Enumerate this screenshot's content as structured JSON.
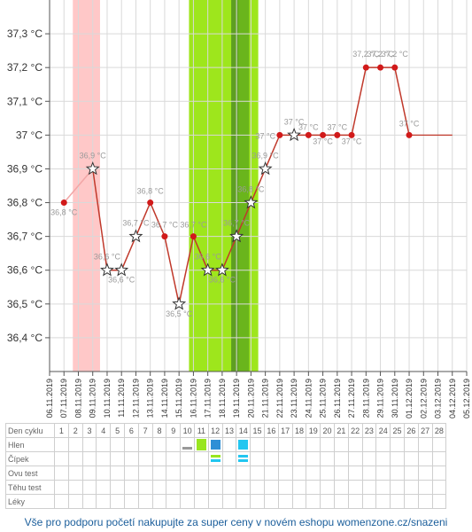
{
  "chart_data": {
    "type": "line",
    "ylabel": "",
    "xlabel": "",
    "y_ticks": [
      "36,4 °C",
      "36,5 °C",
      "36,6 °C",
      "36,7 °C",
      "36,8 °C",
      "36,9 °C",
      "37 °C",
      "37,1 °C",
      "37,2 °C",
      "37,3 °C"
    ],
    "y_tick_values": [
      36.4,
      36.5,
      36.6,
      36.7,
      36.8,
      36.9,
      37.0,
      37.1,
      37.2,
      37.3
    ],
    "ylim": [
      36.3,
      37.4
    ],
    "x_dates": [
      "06.11.2019",
      "07.11.2019",
      "08.11.2019",
      "09.11.2019",
      "10.11.2019",
      "11.11.2019",
      "12.11.2019",
      "13.11.2019",
      "14.11.2019",
      "15.11.2019",
      "16.11.2019",
      "17.11.2019",
      "18.11.2019",
      "19.11.2019",
      "20.11.2019",
      "21.11.2019",
      "22.11.2019",
      "23.11.2019",
      "24.11.2019",
      "25.11.2019",
      "26.11.2019",
      "27.11.2019",
      "28.11.2019",
      "29.11.2019",
      "30.11.2019",
      "01.12.2019",
      "02.12.2019",
      "03.12.2019",
      "04.12.2019",
      "05.12.2019"
    ],
    "series": [
      {
        "points": [
          {
            "x": "07.11.2019",
            "y": 36.8,
            "label": "36,8 °C",
            "marker": "dot"
          },
          {
            "x": "09.11.2019",
            "y": 36.9,
            "label": "36,9 °C",
            "marker": "star"
          },
          {
            "x": "10.11.2019",
            "y": 36.6,
            "label": "36,6 °C",
            "marker": "star"
          },
          {
            "x": "11.11.2019",
            "y": 36.6,
            "label": "36,6 °C",
            "marker": "star"
          },
          {
            "x": "12.11.2019",
            "y": 36.7,
            "label": "36,7 °C",
            "marker": "star"
          },
          {
            "x": "13.11.2019",
            "y": 36.8,
            "label": "36,8 °C",
            "marker": "dot"
          },
          {
            "x": "14.11.2019",
            "y": 36.7,
            "label": "36,7 °C",
            "marker": "dot"
          },
          {
            "x": "15.11.2019",
            "y": 36.5,
            "label": "36,5 °C",
            "marker": "star"
          },
          {
            "x": "16.11.2019",
            "y": 36.7,
            "label": "36,7 °C",
            "marker": "dot"
          },
          {
            "x": "17.11.2019",
            "y": 36.6,
            "label": "36,6 °C",
            "marker": "star"
          },
          {
            "x": "18.11.2019",
            "y": 36.6,
            "label": "36,6 °C",
            "marker": "star"
          },
          {
            "x": "19.11.2019",
            "y": 36.7,
            "label": "36,7 °C",
            "marker": "star"
          },
          {
            "x": "20.11.2019",
            "y": 36.8,
            "label": "36,8 °C",
            "marker": "star"
          },
          {
            "x": "21.11.2019",
            "y": 36.9,
            "label": "36,9 °C",
            "marker": "star"
          },
          {
            "x": "22.11.2019",
            "y": 37.0,
            "label": "37 °C",
            "marker": "dot"
          },
          {
            "x": "23.11.2019",
            "y": 37.0,
            "label": "37 °C",
            "marker": "star"
          },
          {
            "x": "24.11.2019",
            "y": 37.0,
            "label": "37 °C",
            "marker": "dot"
          },
          {
            "x": "25.11.2019",
            "y": 37.0,
            "label": "37 °C",
            "marker": "dot"
          },
          {
            "x": "26.11.2019",
            "y": 37.0,
            "label": "37 °C",
            "marker": "dot"
          },
          {
            "x": "27.11.2019",
            "y": 37.0,
            "label": "37 °C",
            "marker": "dot"
          },
          {
            "x": "28.11.2019",
            "y": 37.2,
            "label": "37,2 °C",
            "marker": "dot"
          },
          {
            "x": "29.11.2019",
            "y": 37.2,
            "label": "37,2 °C",
            "marker": "dot"
          },
          {
            "x": "30.11.2019",
            "y": 37.2,
            "label": "37,2 °C",
            "marker": "dot"
          },
          {
            "x": "01.12.2019",
            "y": 37.0,
            "label": "37 °C",
            "marker": "dot"
          }
        ],
        "flat_tail_to": "04.12.2019"
      }
    ],
    "bands": [
      {
        "from": "07.11.2019",
        "to": "10.11.2019",
        "color": "#ffc8c8"
      },
      {
        "from": "16.11.2019",
        "to": "21.11.2019",
        "color": "#9ee61c"
      },
      {
        "from": "19.11.2019",
        "to": "20.11.2019",
        "color": "#6ab51c"
      },
      {
        "from": "19.11.2019",
        "to": "19.5.11",
        "color": "#5e9f22"
      }
    ],
    "grid": true
  },
  "table": {
    "rows": [
      {
        "label": "Den cyklu",
        "cells": [
          "1",
          "2",
          "3",
          "4",
          "5",
          "6",
          "7",
          "8",
          "9",
          "10",
          "11",
          "12",
          "13",
          "14",
          "15",
          "16",
          "17",
          "18",
          "19",
          "20",
          "21",
          "22",
          "23",
          "24",
          "25",
          "26",
          "27",
          "28"
        ]
      },
      {
        "label": "Hlen",
        "cells": [
          "",
          "",
          "",
          "",
          "",
          "",
          "",
          "",
          "",
          "gray-dash",
          "green-square",
          "blue-square",
          "",
          "cyan-square",
          "",
          "",
          "",
          "",
          "",
          "",
          "",
          "",
          "",
          "",
          "",
          "",
          "",
          ""
        ]
      },
      {
        "label": "Čípek",
        "cells": [
          "",
          "",
          "",
          "",
          "",
          "",
          "",
          "",
          "",
          "",
          "",
          "green-cyan-bars",
          "",
          "cyan-bars",
          "",
          "",
          "",
          "",
          "",
          "",
          "",
          "",
          "",
          "",
          "",
          "",
          "",
          ""
        ]
      },
      {
        "label": "Ovu test",
        "cells": [
          "",
          "",
          "",
          "",
          "",
          "",
          "",
          "",
          "",
          "",
          "",
          "",
          "",
          "",
          "",
          "",
          "",
          "",
          "",
          "",
          "",
          "",
          "",
          "",
          "",
          "",
          "",
          ""
        ]
      },
      {
        "label": "Těhu test",
        "cells": [
          "",
          "",
          "",
          "",
          "",
          "",
          "",
          "",
          "",
          "",
          "",
          "",
          "",
          "",
          "",
          "",
          "",
          "",
          "",
          "",
          "",
          "",
          "",
          "",
          "",
          "",
          "",
          ""
        ]
      },
      {
        "label": "Léky",
        "cells": [
          "",
          "",
          "",
          "",
          "",
          "",
          "",
          "",
          "",
          "",
          "",
          "",
          "",
          "",
          "",
          "",
          "",
          "",
          "",
          "",
          "",
          "",
          "",
          "",
          "",
          "",
          "",
          ""
        ]
      }
    ]
  },
  "footer": {
    "text": "Vše pro podporu početí nakupujte za super ceny v novém eshopu womenzone.cz/snazeni"
  },
  "colors": {
    "line": "#c0392b",
    "dot": "#d11a1a",
    "pink_band": "#ffc8c8",
    "green_band": "#9ee61c",
    "dark_green": "#6ab51c",
    "star_fill": "#ffffff",
    "cell_green": "#99e620",
    "cell_blue": "#2f8fd6",
    "cell_cyan": "#22c6f0",
    "dash_gray": "#999999"
  }
}
